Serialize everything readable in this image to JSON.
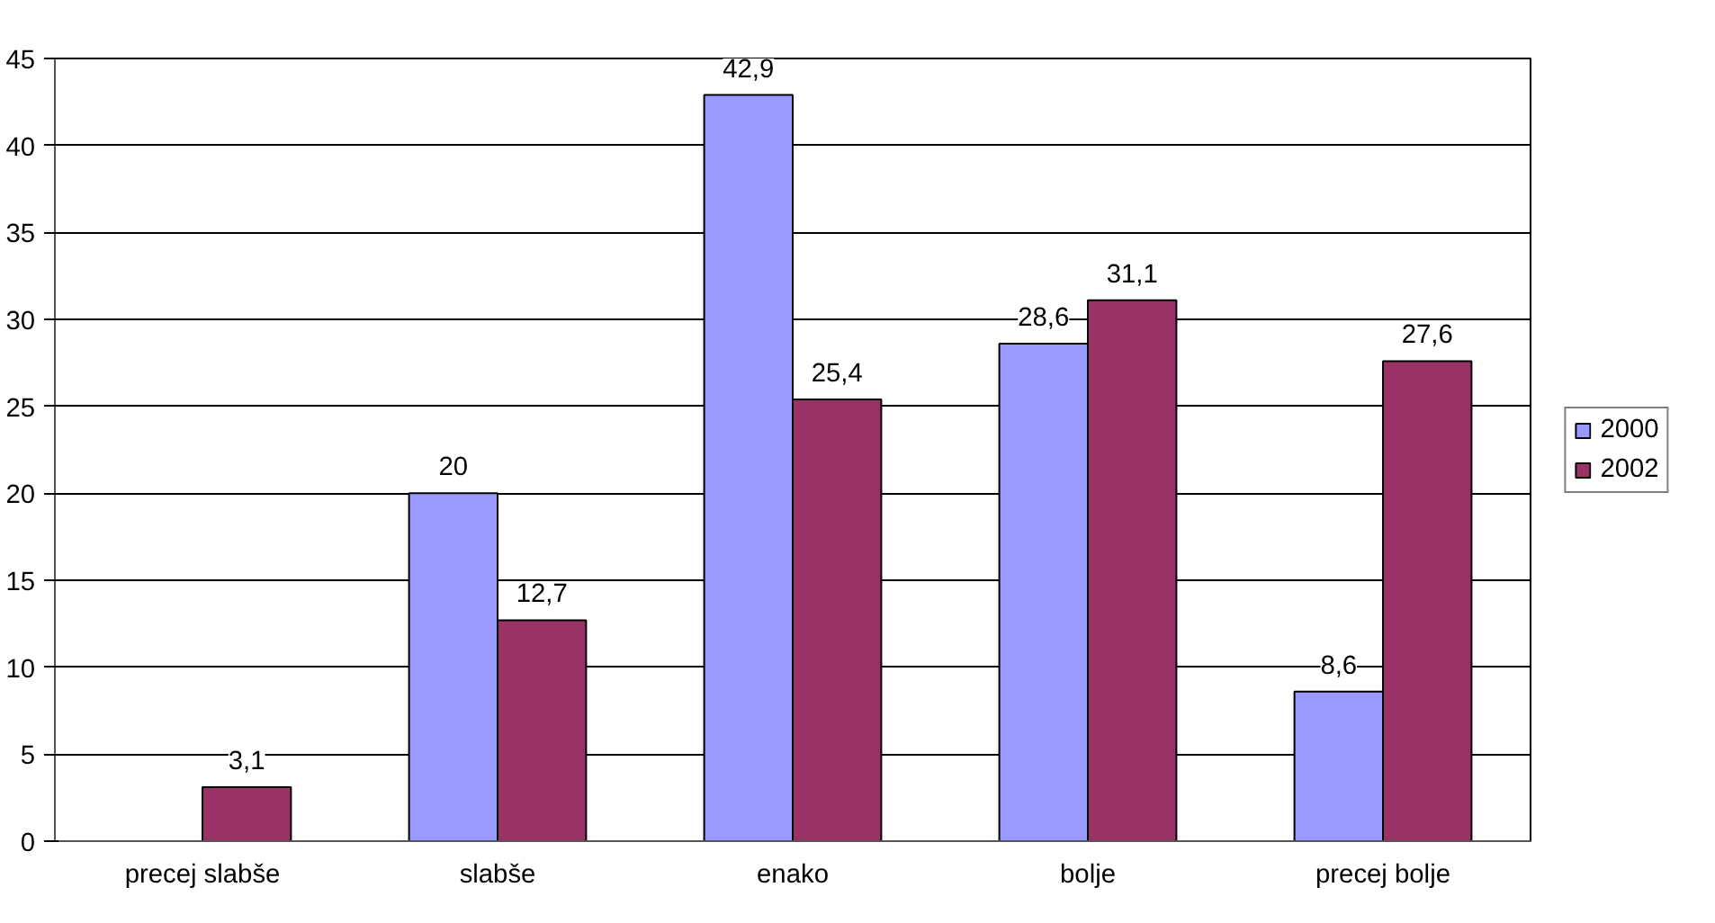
{
  "chart_data": {
    "type": "bar",
    "categories": [
      "precej slabše",
      "slabše",
      "enako",
      "bolje",
      "precej bolje"
    ],
    "series": [
      {
        "name": "2000",
        "color": "#9999ff",
        "values": [
          null,
          20,
          42.9,
          28.6,
          8.6
        ],
        "value_labels": [
          null,
          "20",
          "42,9",
          "28,6",
          "8,6"
        ]
      },
      {
        "name": "2002",
        "color": "#993366",
        "values": [
          3.1,
          12.7,
          25.4,
          31.1,
          27.6
        ],
        "value_labels": [
          "3,1",
          "12,7",
          "25,4",
          "31,1",
          "27,6"
        ]
      }
    ],
    "ylim": [
      0,
      45
    ],
    "yticks": [
      0,
      5,
      10,
      15,
      20,
      25,
      30,
      35,
      40,
      45
    ],
    "grid": "y",
    "legend": "right"
  }
}
